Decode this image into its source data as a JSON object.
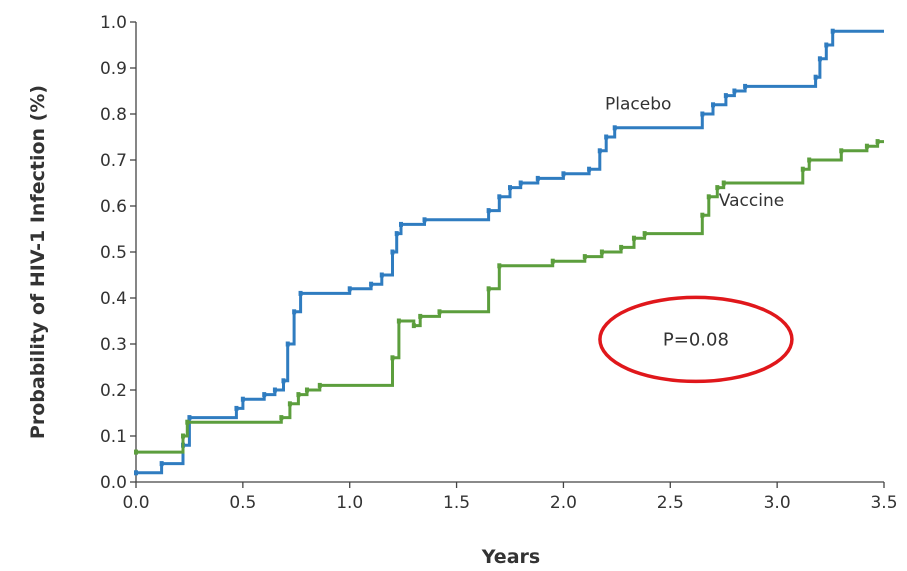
{
  "chart_data": {
    "type": "line",
    "step": true,
    "xlabel": "Years",
    "ylabel": "Probability of HIV-1 Infection (%)",
    "xlim": [
      0,
      3.5
    ],
    "ylim": [
      0,
      1.0
    ],
    "x_ticks": [
      "0.0",
      "0.5",
      "1.0",
      "1.5",
      "2.0",
      "2.5",
      "3.0",
      "3.5"
    ],
    "y_ticks": [
      "0.0",
      "0.1",
      "0.2",
      "0.3",
      "0.4",
      "0.5",
      "0.6",
      "0.7",
      "0.8",
      "0.9",
      "1.0"
    ],
    "grid": false,
    "series": [
      {
        "name": "Placebo",
        "color": "#2f7cc0",
        "points": [
          [
            0.0,
            0.02
          ],
          [
            0.12,
            0.02
          ],
          [
            0.12,
            0.04
          ],
          [
            0.22,
            0.04
          ],
          [
            0.22,
            0.08
          ],
          [
            0.25,
            0.08
          ],
          [
            0.25,
            0.14
          ],
          [
            0.47,
            0.14
          ],
          [
            0.47,
            0.16
          ],
          [
            0.5,
            0.16
          ],
          [
            0.5,
            0.18
          ],
          [
            0.6,
            0.18
          ],
          [
            0.6,
            0.19
          ],
          [
            0.65,
            0.19
          ],
          [
            0.65,
            0.2
          ],
          [
            0.69,
            0.2
          ],
          [
            0.69,
            0.22
          ],
          [
            0.71,
            0.22
          ],
          [
            0.71,
            0.3
          ],
          [
            0.74,
            0.3
          ],
          [
            0.74,
            0.37
          ],
          [
            0.77,
            0.37
          ],
          [
            0.77,
            0.41
          ],
          [
            1.0,
            0.41
          ],
          [
            1.0,
            0.42
          ],
          [
            1.1,
            0.42
          ],
          [
            1.1,
            0.43
          ],
          [
            1.15,
            0.43
          ],
          [
            1.15,
            0.45
          ],
          [
            1.2,
            0.45
          ],
          [
            1.2,
            0.5
          ],
          [
            1.22,
            0.5
          ],
          [
            1.22,
            0.54
          ],
          [
            1.24,
            0.54
          ],
          [
            1.24,
            0.56
          ],
          [
            1.35,
            0.56
          ],
          [
            1.35,
            0.57
          ],
          [
            1.65,
            0.57
          ],
          [
            1.65,
            0.59
          ],
          [
            1.7,
            0.59
          ],
          [
            1.7,
            0.62
          ],
          [
            1.75,
            0.62
          ],
          [
            1.75,
            0.64
          ],
          [
            1.8,
            0.64
          ],
          [
            1.8,
            0.65
          ],
          [
            1.88,
            0.65
          ],
          [
            1.88,
            0.66
          ],
          [
            2.0,
            0.66
          ],
          [
            2.0,
            0.67
          ],
          [
            2.12,
            0.67
          ],
          [
            2.12,
            0.68
          ],
          [
            2.17,
            0.68
          ],
          [
            2.17,
            0.72
          ],
          [
            2.2,
            0.72
          ],
          [
            2.2,
            0.75
          ],
          [
            2.24,
            0.75
          ],
          [
            2.24,
            0.77
          ],
          [
            2.65,
            0.77
          ],
          [
            2.65,
            0.8
          ],
          [
            2.7,
            0.8
          ],
          [
            2.7,
            0.82
          ],
          [
            2.76,
            0.82
          ],
          [
            2.76,
            0.84
          ],
          [
            2.8,
            0.84
          ],
          [
            2.8,
            0.85
          ],
          [
            2.85,
            0.85
          ],
          [
            2.85,
            0.86
          ],
          [
            3.18,
            0.86
          ],
          [
            3.18,
            0.88
          ],
          [
            3.2,
            0.88
          ],
          [
            3.2,
            0.92
          ],
          [
            3.23,
            0.92
          ],
          [
            3.23,
            0.95
          ],
          [
            3.26,
            0.95
          ],
          [
            3.26,
            0.98
          ],
          [
            3.5,
            0.98
          ]
        ]
      },
      {
        "name": "Vaccine",
        "color": "#5c9e3d",
        "points": [
          [
            0.0,
            0.065
          ],
          [
            0.22,
            0.065
          ],
          [
            0.22,
            0.1
          ],
          [
            0.24,
            0.1
          ],
          [
            0.24,
            0.13
          ],
          [
            0.68,
            0.13
          ],
          [
            0.68,
            0.14
          ],
          [
            0.72,
            0.14
          ],
          [
            0.72,
            0.17
          ],
          [
            0.76,
            0.17
          ],
          [
            0.76,
            0.19
          ],
          [
            0.8,
            0.19
          ],
          [
            0.8,
            0.2
          ],
          [
            0.86,
            0.2
          ],
          [
            0.86,
            0.21
          ],
          [
            1.2,
            0.21
          ],
          [
            1.2,
            0.27
          ],
          [
            1.23,
            0.27
          ],
          [
            1.23,
            0.35
          ],
          [
            1.3,
            0.35
          ],
          [
            1.3,
            0.34
          ],
          [
            1.33,
            0.34
          ],
          [
            1.33,
            0.36
          ],
          [
            1.42,
            0.36
          ],
          [
            1.42,
            0.37
          ],
          [
            1.65,
            0.37
          ],
          [
            1.65,
            0.42
          ],
          [
            1.7,
            0.42
          ],
          [
            1.7,
            0.47
          ],
          [
            1.95,
            0.47
          ],
          [
            1.95,
            0.48
          ],
          [
            2.1,
            0.48
          ],
          [
            2.1,
            0.49
          ],
          [
            2.18,
            0.49
          ],
          [
            2.18,
            0.5
          ],
          [
            2.27,
            0.5
          ],
          [
            2.27,
            0.51
          ],
          [
            2.33,
            0.51
          ],
          [
            2.33,
            0.53
          ],
          [
            2.38,
            0.53
          ],
          [
            2.38,
            0.54
          ],
          [
            2.65,
            0.54
          ],
          [
            2.65,
            0.58
          ],
          [
            2.68,
            0.58
          ],
          [
            2.68,
            0.62
          ],
          [
            2.72,
            0.62
          ],
          [
            2.72,
            0.64
          ],
          [
            2.75,
            0.64
          ],
          [
            2.75,
            0.65
          ],
          [
            3.12,
            0.65
          ],
          [
            3.12,
            0.68
          ],
          [
            3.15,
            0.68
          ],
          [
            3.15,
            0.7
          ],
          [
            3.3,
            0.7
          ],
          [
            3.3,
            0.72
          ],
          [
            3.42,
            0.72
          ],
          [
            3.42,
            0.73
          ],
          [
            3.47,
            0.73
          ],
          [
            3.47,
            0.74
          ],
          [
            3.5,
            0.74
          ]
        ]
      }
    ],
    "annotation": {
      "text": "P=0.08",
      "x": 2.62,
      "y": 0.31,
      "ring_color": "#e0171b"
    }
  }
}
